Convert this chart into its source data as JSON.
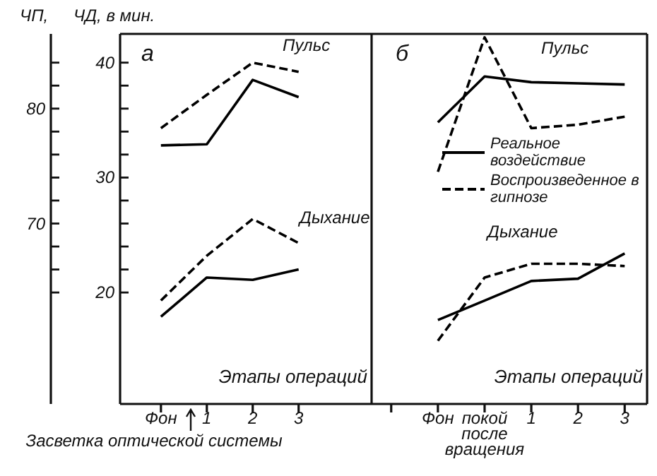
{
  "chart_data": [
    {
      "type": "line",
      "title": "а",
      "xlabel": "Этапы операций",
      "ylabel": "ЧД, в мин.",
      "y2label": "ЧП,",
      "categories": [
        "Фон",
        "1",
        "2",
        "3"
      ],
      "series": [
        {
          "color": "#000000",
          "line_style": "solid",
          "axis": "y2",
          "values": [
            76.8,
            76.9,
            82.5,
            81.0
          ]
        },
        {
          "color": "#000000",
          "line_style": "dashed",
          "axis": "y2",
          "values": [
            78.3,
            81.2,
            84.0,
            83.2
          ]
        },
        {
          "color": "#000000",
          "line_style": "solid",
          "values": [
            17.9,
            21.3,
            21.1,
            22.0
          ]
        },
        {
          "color": "#000000",
          "line_style": "dashed",
          "values": [
            19.3,
            23.2,
            26.4,
            24.3
          ]
        }
      ],
      "ylim": [
        10.3,
        42.5
      ],
      "yticks": [
        {
          "value": 20,
          "label": "20"
        },
        {
          "value": 22,
          "label": null
        },
        {
          "value": 24,
          "label": null
        },
        {
          "value": 26,
          "label": null
        },
        {
          "value": 28,
          "label": null
        },
        {
          "value": 30,
          "label": "30"
        },
        {
          "value": 32,
          "label": null
        },
        {
          "value": 34,
          "label": null
        },
        {
          "value": 36,
          "label": null
        },
        {
          "value": 38,
          "label": null
        },
        {
          "value": 40,
          "label": "40"
        }
      ],
      "y2lim": [
        54.3,
        86.5
      ],
      "y2ticks": [
        {
          "value": 64,
          "label": null
        },
        {
          "value": 66,
          "label": null
        },
        {
          "value": 68,
          "label": null
        },
        {
          "value": 70,
          "label": "70"
        },
        {
          "value": 72,
          "label": null
        },
        {
          "value": 74,
          "label": null
        },
        {
          "value": 76,
          "label": null
        },
        {
          "value": 78,
          "label": null
        },
        {
          "value": 80,
          "label": "80"
        },
        {
          "value": 82,
          "label": null
        },
        {
          "value": 84,
          "label": null
        }
      ],
      "annotations": [
        "Пульс",
        "Дыхание",
        "Засветка оптической системы"
      ],
      "marker": "none",
      "legend": false,
      "grid": false
    },
    {
      "type": "line",
      "title": "б",
      "xlabel": "Этапы операций",
      "categories": [
        null,
        "Фон",
        "покой после вращения",
        "1",
        "2",
        "3"
      ],
      "series": [
        {
          "name": "Реальное воздействие",
          "color": "#000000",
          "line_style": "solid",
          "axis": "y2",
          "values": [
            null,
            78.8,
            82.8,
            82.3,
            82.2,
            82.1
          ]
        },
        {
          "name": "Воспроизведенное в гипнозе",
          "color": "#000000",
          "line_style": "dashed",
          "axis": "y2",
          "values": [
            null,
            74.5,
            86.2,
            78.3,
            78.6,
            79.3
          ]
        },
        {
          "color": "#000000",
          "line_style": "solid",
          "values": [
            null,
            17.6,
            19.3,
            21.0,
            21.2,
            23.4
          ]
        },
        {
          "color": "#000000",
          "line_style": "dashed",
          "values": [
            null,
            15.8,
            21.3,
            22.5,
            22.5,
            22.3
          ]
        }
      ],
      "ylim": [
        10.3,
        42.5
      ],
      "y2lim": [
        54.3,
        86.5
      ],
      "tick_labels": "x",
      "annotations": [
        "Пульс",
        "Дыхание"
      ],
      "marker": "none",
      "legend": "right",
      "grid": false
    }
  ]
}
